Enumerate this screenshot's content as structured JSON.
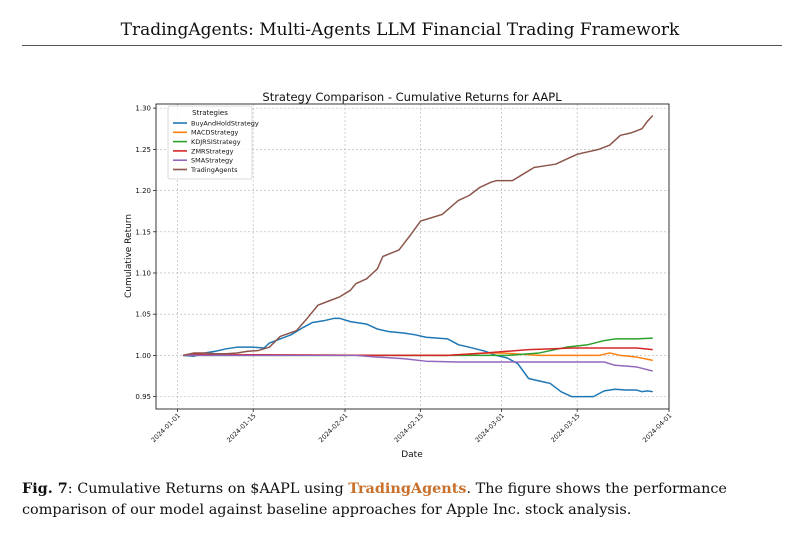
{
  "running_head": "TradingAgents: Multi-Agents LLM Financial Trading Framework",
  "caption": {
    "label": "Fig. 7",
    "sep": ": ",
    "text_before": "Cumulative Returns on $AAPL using ",
    "highlight": "TradingAgents",
    "text_after": ". The figure shows the performance comparison of our model against baseline approaches for Apple Inc. stock analysis."
  },
  "colors": {
    "BuyAndHoldStrategy": "#1f77b4",
    "MACDStrategy": "#ff7f0e",
    "KDJRSIStrategy": "#2ca02c",
    "ZMRStrategy": "#d62728",
    "SMAStrategy": "#9467bd",
    "TradingAgents": "#8c564b",
    "highlight": "#c8702c"
  },
  "chart_data": {
    "type": "line",
    "title": "Strategy Comparison - Cumulative Returns for AAPL",
    "xlabel": "Date",
    "ylabel": "Cumulative Return",
    "xlim": [
      "2023-12-28",
      "2024-04-01"
    ],
    "ylim": [
      0.935,
      1.305
    ],
    "x_ticks": [
      "2024-01-01",
      "2024-01-15",
      "2024-02-01",
      "2024-02-15",
      "2024-03-01",
      "2024-03-15",
      "2024-04-01"
    ],
    "y_ticks": [
      "0.95",
      "1.00",
      "1.05",
      "1.10",
      "1.15",
      "1.20",
      "1.25",
      "1.30"
    ],
    "grid": true,
    "legend_title": "Strategies",
    "legend_position": "top-left",
    "series": [
      {
        "name": "BuyAndHoldStrategy",
        "points": [
          [
            "2024-01-02",
            1.0
          ],
          [
            "2024-01-04",
            0.999
          ],
          [
            "2024-01-06",
            1.003
          ],
          [
            "2024-01-08",
            1.005
          ],
          [
            "2024-01-10",
            1.008
          ],
          [
            "2024-01-12",
            1.01
          ],
          [
            "2024-01-15",
            1.01
          ],
          [
            "2024-01-17",
            1.009
          ],
          [
            "2024-01-18",
            1.015
          ],
          [
            "2024-01-22",
            1.025
          ],
          [
            "2024-01-24",
            1.033
          ],
          [
            "2024-01-26",
            1.04
          ],
          [
            "2024-01-28",
            1.042
          ],
          [
            "2024-01-30",
            1.045
          ],
          [
            "2024-01-31",
            1.045
          ],
          [
            "2024-02-02",
            1.041
          ],
          [
            "2024-02-05",
            1.038
          ],
          [
            "2024-02-07",
            1.032
          ],
          [
            "2024-02-09",
            1.029
          ],
          [
            "2024-02-12",
            1.027
          ],
          [
            "2024-02-14",
            1.025
          ],
          [
            "2024-02-16",
            1.022
          ],
          [
            "2024-02-20",
            1.02
          ],
          [
            "2024-02-22",
            1.013
          ],
          [
            "2024-02-24",
            1.01
          ],
          [
            "2024-02-27",
            1.005
          ],
          [
            "2024-02-29",
            1.0
          ],
          [
            "2024-03-02",
            0.997
          ],
          [
            "2024-03-04",
            0.99
          ],
          [
            "2024-03-06",
            0.972
          ],
          [
            "2024-03-08",
            0.969
          ],
          [
            "2024-03-10",
            0.966
          ],
          [
            "2024-03-12",
            0.956
          ],
          [
            "2024-03-14",
            0.95
          ],
          [
            "2024-03-16",
            0.95
          ],
          [
            "2024-03-18",
            0.95
          ],
          [
            "2024-03-20",
            0.957
          ],
          [
            "2024-03-22",
            0.959
          ],
          [
            "2024-03-24",
            0.958
          ],
          [
            "2024-03-26",
            0.958
          ],
          [
            "2024-03-27",
            0.956
          ],
          [
            "2024-03-28",
            0.957
          ],
          [
            "2024-03-29",
            0.956
          ]
        ]
      },
      {
        "name": "MACDStrategy",
        "points": [
          [
            "2024-01-02",
            1.0
          ],
          [
            "2024-01-04",
            1.001
          ],
          [
            "2024-01-06",
            1.001
          ],
          [
            "2024-02-20",
            1.0
          ],
          [
            "2024-02-27",
            1.003
          ],
          [
            "2024-03-01",
            1.003
          ],
          [
            "2024-03-08",
            1.0
          ],
          [
            "2024-03-17",
            1.0
          ],
          [
            "2024-03-19",
            1.0
          ],
          [
            "2024-03-21",
            1.003
          ],
          [
            "2024-03-23",
            1.0
          ],
          [
            "2024-03-26",
            0.998
          ],
          [
            "2024-03-29",
            0.994
          ]
        ]
      },
      {
        "name": "KDJRSIStrategy",
        "points": [
          [
            "2024-01-02",
            1.0
          ],
          [
            "2024-02-27",
            1.0
          ],
          [
            "2024-03-02",
            1.0
          ],
          [
            "2024-03-08",
            1.003
          ],
          [
            "2024-03-13",
            1.01
          ],
          [
            "2024-03-17",
            1.013
          ],
          [
            "2024-03-20",
            1.018
          ],
          [
            "2024-03-22",
            1.02
          ],
          [
            "2024-03-26",
            1.02
          ],
          [
            "2024-03-29",
            1.021
          ]
        ]
      },
      {
        "name": "ZMRStrategy",
        "points": [
          [
            "2024-01-02",
            1.0
          ],
          [
            "2024-01-04",
            1.002
          ],
          [
            "2024-01-06",
            1.001
          ],
          [
            "2024-02-10",
            1.0
          ],
          [
            "2024-02-20",
            1.0
          ],
          [
            "2024-02-27",
            1.003
          ],
          [
            "2024-03-02",
            1.005
          ],
          [
            "2024-03-06",
            1.007
          ],
          [
            "2024-03-10",
            1.008
          ],
          [
            "2024-03-14",
            1.009
          ],
          [
            "2024-03-20",
            1.009
          ],
          [
            "2024-03-26",
            1.009
          ],
          [
            "2024-03-29",
            1.007
          ]
        ]
      },
      {
        "name": "SMAStrategy",
        "points": [
          [
            "2024-01-02",
            1.0
          ],
          [
            "2024-02-03",
            1.0
          ],
          [
            "2024-02-07",
            0.998
          ],
          [
            "2024-02-12",
            0.996
          ],
          [
            "2024-02-16",
            0.993
          ],
          [
            "2024-02-22",
            0.992
          ],
          [
            "2024-03-10",
            0.992
          ],
          [
            "2024-03-18",
            0.992
          ],
          [
            "2024-03-20",
            0.992
          ],
          [
            "2024-03-22",
            0.988
          ],
          [
            "2024-03-26",
            0.986
          ],
          [
            "2024-03-29",
            0.981
          ]
        ]
      },
      {
        "name": "TradingAgents",
        "points": [
          [
            "2024-01-02",
            1.0
          ],
          [
            "2024-01-04",
            1.003
          ],
          [
            "2024-01-06",
            1.003
          ],
          [
            "2024-01-08",
            1.002
          ],
          [
            "2024-01-10",
            1.002
          ],
          [
            "2024-01-12",
            1.003
          ],
          [
            "2024-01-14",
            1.005
          ],
          [
            "2024-01-16",
            1.006
          ],
          [
            "2024-01-18",
            1.01
          ],
          [
            "2024-01-20",
            1.023
          ],
          [
            "2024-01-23",
            1.03
          ],
          [
            "2024-01-25",
            1.045
          ],
          [
            "2024-01-27",
            1.061
          ],
          [
            "2024-01-29",
            1.066
          ],
          [
            "2024-01-31",
            1.071
          ],
          [
            "2024-02-02",
            1.079
          ],
          [
            "2024-02-03",
            1.087
          ],
          [
            "2024-02-05",
            1.093
          ],
          [
            "2024-02-07",
            1.105
          ],
          [
            "2024-02-08",
            1.12
          ],
          [
            "2024-02-11",
            1.128
          ],
          [
            "2024-02-13",
            1.145
          ],
          [
            "2024-02-15",
            1.163
          ],
          [
            "2024-02-17",
            1.167
          ],
          [
            "2024-02-19",
            1.171
          ],
          [
            "2024-02-22",
            1.188
          ],
          [
            "2024-02-24",
            1.194
          ],
          [
            "2024-02-26",
            1.204
          ],
          [
            "2024-02-28",
            1.21
          ],
          [
            "2024-02-29",
            1.212
          ],
          [
            "2024-03-03",
            1.212
          ],
          [
            "2024-03-05",
            1.22
          ],
          [
            "2024-03-07",
            1.228
          ],
          [
            "2024-03-09",
            1.23
          ],
          [
            "2024-03-11",
            1.232
          ],
          [
            "2024-03-13",
            1.238
          ],
          [
            "2024-03-15",
            1.244
          ],
          [
            "2024-03-17",
            1.247
          ],
          [
            "2024-03-19",
            1.25
          ],
          [
            "2024-03-21",
            1.255
          ],
          [
            "2024-03-23",
            1.267
          ],
          [
            "2024-03-25",
            1.27
          ],
          [
            "2024-03-27",
            1.275
          ],
          [
            "2024-03-28",
            1.284
          ],
          [
            "2024-03-29",
            1.291
          ]
        ]
      }
    ]
  }
}
